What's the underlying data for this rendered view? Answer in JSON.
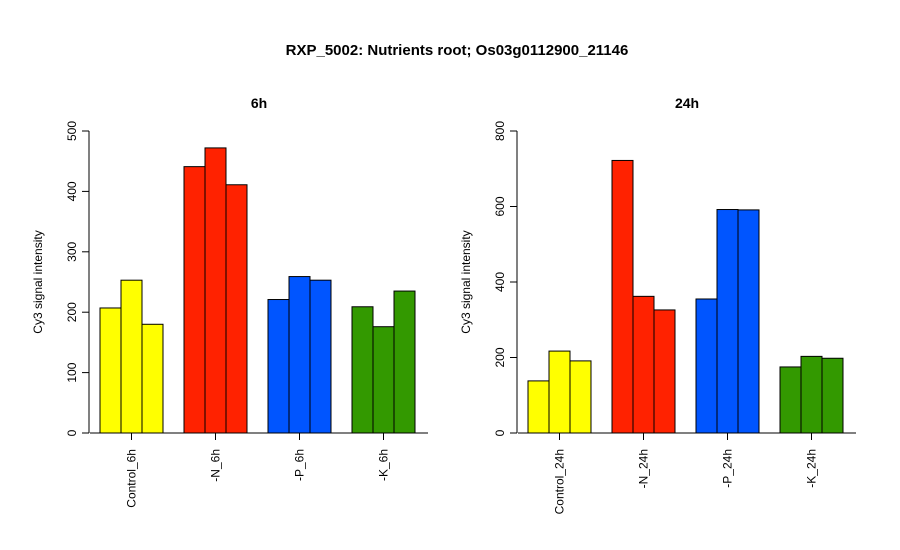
{
  "title": "RXP_5002: Nutrients root; Os03g0112900_21146",
  "chart_data": [
    {
      "type": "bar",
      "title": "6h",
      "xlabel": "",
      "ylabel": "Cy3 signal intensity",
      "ylim": [
        0,
        500
      ],
      "yticks": [
        0,
        100,
        200,
        300,
        400,
        500
      ],
      "categories": [
        "Control_6h",
        "-N_6h",
        "-P_6h",
        "-K_6h"
      ],
      "colors": [
        "#ffff00",
        "#ff2200",
        "#0055ff",
        "#339900"
      ],
      "replicates": [
        [
          207,
          253,
          180
        ],
        [
          441,
          472,
          411
        ],
        [
          221,
          259,
          253
        ],
        [
          209,
          176,
          235
        ]
      ]
    },
    {
      "type": "bar",
      "title": "24h",
      "xlabel": "",
      "ylabel": "Cy3 signal intensity",
      "ylim": [
        0,
        800
      ],
      "yticks": [
        0,
        200,
        400,
        600,
        800
      ],
      "categories": [
        "Control_24h",
        "-N_24h",
        "-P_24h",
        "-K_24h"
      ],
      "colors": [
        "#ffff00",
        "#ff2200",
        "#0055ff",
        "#339900"
      ],
      "replicates": [
        [
          138,
          217,
          191
        ],
        [
          722,
          362,
          326
        ],
        [
          355,
          592,
          591
        ],
        [
          175,
          203,
          198
        ]
      ]
    }
  ]
}
